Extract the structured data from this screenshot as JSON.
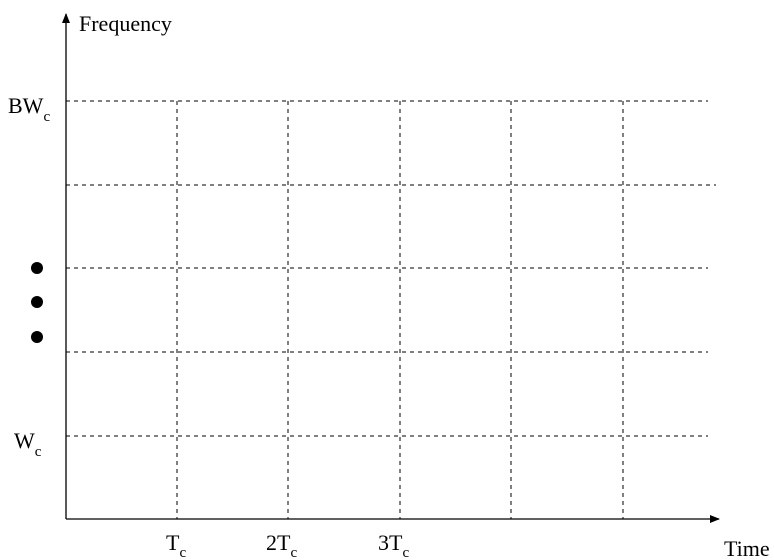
{
  "diagram": {
    "y_axis_label": "Frequency",
    "x_axis_label": "Time",
    "y_labels": {
      "top": {
        "main": "BW",
        "sub": "c"
      },
      "bottom": {
        "main": "W",
        "sub": "c"
      }
    },
    "x_labels": [
      {
        "main": "T",
        "sub": "c"
      },
      {
        "main": "2T",
        "sub": "c"
      },
      {
        "main": "3T",
        "sub": "c"
      }
    ],
    "grid": {
      "rows": 5,
      "columns": 6,
      "line_style": "dashed"
    },
    "ellipsis_dots": 3,
    "colors": {
      "lines": "#000000",
      "background": "#ffffff"
    }
  }
}
